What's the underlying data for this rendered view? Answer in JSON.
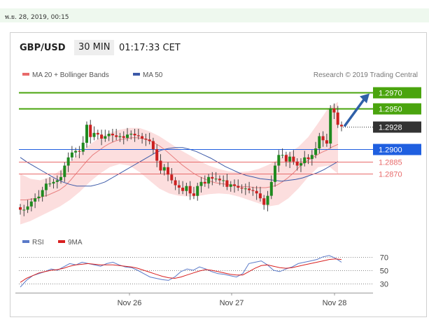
{
  "header": {
    "date_label": "พ.ย. 28, 2019, 00:15",
    "pair": "GBP/USD",
    "timeframe": "30 MIN",
    "time": "01:17:33 CET",
    "legend_ma20": "MA 20 + Bollinger Bands",
    "legend_ma50": "MA 50",
    "credit": "Research © 2019 Trading Central",
    "rsi_legend": "RSI",
    "rsi_ma_legend": "9MA"
  },
  "colors": {
    "green": "#4aa40e",
    "blue": "#1f5fe0",
    "red": "#e86a6a",
    "candle_green": "#1f8a1f",
    "candle_red": "#cc2020",
    "band": "#fcdede",
    "ma50": "#3c5aa8",
    "dark": "#333333",
    "arrow": "#2f60a8"
  },
  "chart_data": [
    {
      "type": "candlestick",
      "title": "GBP/USD 30 MIN",
      "x_labels": [
        "Nov 26",
        "Nov 27",
        "Nov 28"
      ],
      "ylim": [
        1.2805,
        1.2985
      ],
      "levels": [
        {
          "value": 1.297,
          "label": "1.2970",
          "kind": "resistance"
        },
        {
          "value": 1.295,
          "label": "1.2950",
          "kind": "resistance"
        },
        {
          "value": 1.2928,
          "label": "1.2928",
          "kind": "last"
        },
        {
          "value": 1.29,
          "label": "1.2900",
          "kind": "pivot"
        },
        {
          "value": 1.2885,
          "label": "1.2885",
          "kind": "support"
        },
        {
          "value": 1.287,
          "label": "1.2870",
          "kind": "support"
        }
      ],
      "close_series": [
        1.2826,
        1.2826,
        1.283,
        1.2836,
        1.284,
        1.2842,
        1.285,
        1.2858,
        1.2858,
        1.286,
        1.2862,
        1.2866,
        1.288,
        1.289,
        1.2896,
        1.2898,
        1.2897,
        1.2908,
        1.293,
        1.2915,
        1.292,
        1.2918,
        1.2913,
        1.2916,
        1.2919,
        1.2917,
        1.2915,
        1.2916,
        1.2914,
        1.2918,
        1.2919,
        1.2917,
        1.2916,
        1.2913,
        1.2912,
        1.291,
        1.29,
        1.2886,
        1.2874,
        1.2878,
        1.2869,
        1.2862,
        1.2856,
        1.2853,
        1.2849,
        1.2855,
        1.2846,
        1.2843,
        1.2855,
        1.286,
        1.2858,
        1.2866,
        1.2864,
        1.2864,
        1.2862,
        1.2862,
        1.2854,
        1.2857,
        1.2855,
        1.2853,
        1.2852,
        1.2852,
        1.285,
        1.2849,
        1.2846,
        1.284,
        1.2832,
        1.2843,
        1.286,
        1.288,
        1.2893,
        1.2893,
        1.2885,
        1.2891,
        1.2885,
        1.288,
        1.2883,
        1.289,
        1.2888,
        1.2893,
        1.2901,
        1.2916,
        1.2911,
        1.2907,
        1.295,
        1.2945,
        1.293,
        1.2928
      ],
      "ma20": [
        1.2838,
        1.2838,
        1.2839,
        1.284,
        1.2842,
        1.2844,
        1.2847,
        1.285,
        1.2855,
        1.2862,
        1.287,
        1.2878,
        1.2886,
        1.2893,
        1.2898,
        1.2903,
        1.2907,
        1.291,
        1.2912,
        1.2913,
        1.2914,
        1.2914,
        1.2913,
        1.2911,
        1.2908,
        1.2904,
        1.2899,
        1.2893,
        1.2887,
        1.2881,
        1.2876,
        1.2871,
        1.2867,
        1.2864,
        1.2861,
        1.2859,
        1.2858,
        1.2857,
        1.2856,
        1.2855,
        1.2854,
        1.2854,
        1.2853,
        1.2853,
        1.2853,
        1.2854,
        1.2856,
        1.286,
        1.2865,
        1.2871,
        1.2878,
        1.2884,
        1.2888,
        1.2892,
        1.2896,
        1.2899,
        1.2903,
        1.2906
      ],
      "ma50": [
        1.289,
        1.2884,
        1.2879,
        1.2874,
        1.2869,
        1.2864,
        1.286,
        1.2857,
        1.2855,
        1.2855,
        1.2855,
        1.2857,
        1.286,
        1.2865,
        1.287,
        1.2875,
        1.288,
        1.2885,
        1.289,
        1.2895,
        1.2899,
        1.2901,
        1.2902,
        1.2902,
        1.29,
        1.2897,
        1.2893,
        1.2889,
        1.2884,
        1.2879,
        1.2875,
        1.2871,
        1.2868,
        1.2866,
        1.2864,
        1.2863,
        1.2862,
        1.2861,
        1.2862,
        1.2863,
        1.2865,
        1.2868,
        1.2871,
        1.2875,
        1.288,
        1.2885
      ],
      "bollinger_upper": [
        1.287,
        1.2864,
        1.2862,
        1.2866,
        1.2874,
        1.2884,
        1.2896,
        1.2906,
        1.2914,
        1.292,
        1.2924,
        1.2926,
        1.2926,
        1.2922,
        1.2916,
        1.2908,
        1.29,
        1.2893,
        1.2886,
        1.288,
        1.2876,
        1.2873,
        1.2872,
        1.2873,
        1.2876,
        1.2881,
        1.2888,
        1.2895,
        1.2903,
        1.2915,
        1.2932,
        1.295,
        1.2958
      ],
      "bollinger_lower": [
        1.2808,
        1.2812,
        1.2818,
        1.2824,
        1.283,
        1.2838,
        1.2848,
        1.286,
        1.287,
        1.2878,
        1.2882,
        1.288,
        1.2872,
        1.2862,
        1.2852,
        1.2846,
        1.2843,
        1.2842,
        1.2843,
        1.2845,
        1.2846,
        1.2845,
        1.2842,
        1.2838,
        1.2834,
        1.283,
        1.2832,
        1.284,
        1.2852,
        1.2866,
        1.2878,
        1.288,
        1.287
      ]
    },
    {
      "type": "line",
      "title": "RSI",
      "series": [
        {
          "name": "RSI",
          "values": [
            25,
            35,
            42,
            45,
            48,
            52,
            50,
            55,
            60,
            58,
            62,
            60,
            58,
            56,
            60,
            62,
            58,
            55,
            54,
            50,
            45,
            40,
            38,
            36,
            35,
            40,
            48,
            52,
            50,
            55,
            52,
            48,
            45,
            44,
            42,
            40,
            45,
            60,
            62,
            64,
            58,
            50,
            48,
            52,
            55,
            60,
            62,
            64,
            66,
            70,
            72,
            68,
            62
          ]
        },
        {
          "name": "9MA",
          "values": [
            32,
            38,
            42,
            46,
            48,
            50,
            51,
            53,
            56,
            58,
            59,
            60,
            59,
            58,
            58,
            58,
            57,
            56,
            55,
            53,
            50,
            47,
            44,
            41,
            39,
            38,
            40,
            43,
            46,
            49,
            51,
            50,
            48,
            46,
            44,
            43,
            43,
            48,
            53,
            57,
            58,
            56,
            54,
            53,
            54,
            56,
            58,
            60,
            62,
            64,
            66,
            67,
            66
          ]
        }
      ],
      "y_ticks": [
        70,
        50,
        30
      ],
      "ylim": [
        25,
        75
      ]
    }
  ]
}
